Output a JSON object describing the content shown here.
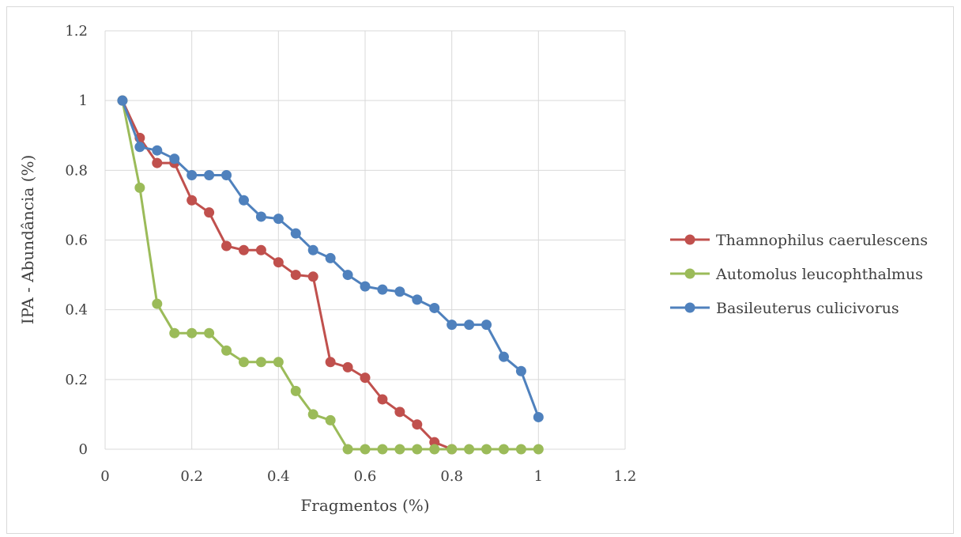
{
  "chart_data": {
    "type": "line",
    "xlabel": "Fragmentos (%)",
    "ylabel": "IPA - Abundância (%)",
    "xlim": [
      0,
      1.2
    ],
    "ylim": [
      0,
      1.2
    ],
    "xticks": [
      "0",
      "0.2",
      "0.4",
      "0.6",
      "0.8",
      "1",
      "1.2"
    ],
    "yticks": [
      "0",
      "0.2",
      "0.4",
      "0.6",
      "0.8",
      "1",
      "1.2"
    ],
    "grid": true,
    "legend_position": "right",
    "x": [
      0.04,
      0.08,
      0.12,
      0.16,
      0.2,
      0.24,
      0.28,
      0.32,
      0.36,
      0.4,
      0.44,
      0.48,
      0.52,
      0.56,
      0.6,
      0.64,
      0.68,
      0.72,
      0.76,
      0.8,
      0.84,
      0.88,
      0.92,
      0.96,
      1.0
    ],
    "series": [
      {
        "name": "Thamnophilus caerulescens",
        "color": "#c0504d",
        "x": [
          0.04,
          0.08,
          0.12,
          0.16,
          0.2,
          0.24,
          0.28,
          0.32,
          0.36,
          0.4,
          0.44,
          0.48,
          0.52,
          0.56,
          0.6,
          0.64,
          0.68,
          0.72,
          0.76,
          0.8
        ],
        "values": [
          1.0,
          0.893,
          0.821,
          0.821,
          0.714,
          0.679,
          0.583,
          0.571,
          0.571,
          0.536,
          0.5,
          0.495,
          0.25,
          0.235,
          0.205,
          0.143,
          0.107,
          0.071,
          0.02,
          0.0
        ]
      },
      {
        "name": "Automolus leucophthalmus",
        "color": "#9bbb59",
        "x": [
          0.04,
          0.08,
          0.12,
          0.16,
          0.2,
          0.24,
          0.28,
          0.32,
          0.36,
          0.4,
          0.44,
          0.48,
          0.52,
          0.56,
          0.6,
          0.64,
          0.68,
          0.72,
          0.76,
          0.8,
          0.84,
          0.88,
          0.92,
          0.96,
          1.0
        ],
        "values": [
          1.0,
          0.75,
          0.417,
          0.333,
          0.333,
          0.333,
          0.283,
          0.25,
          0.25,
          0.25,
          0.167,
          0.1,
          0.083,
          0.0,
          0.0,
          0.0,
          0.0,
          0.0,
          0.0,
          0.0,
          0.0,
          0.0,
          0.0,
          0.0,
          0.0
        ]
      },
      {
        "name": "Basileuterus culicivorus",
        "color": "#4f81bd",
        "x": [
          0.04,
          0.08,
          0.12,
          0.16,
          0.2,
          0.24,
          0.28,
          0.32,
          0.36,
          0.4,
          0.44,
          0.48,
          0.52,
          0.56,
          0.6,
          0.64,
          0.68,
          0.72,
          0.76,
          0.8,
          0.84,
          0.88,
          0.92,
          0.96,
          1.0
        ],
        "values": [
          1.0,
          0.867,
          0.857,
          0.833,
          0.786,
          0.786,
          0.786,
          0.714,
          0.667,
          0.661,
          0.619,
          0.571,
          0.548,
          0.5,
          0.467,
          0.458,
          0.452,
          0.429,
          0.405,
          0.357,
          0.357,
          0.357,
          0.265,
          0.224,
          0.092
        ]
      }
    ]
  }
}
